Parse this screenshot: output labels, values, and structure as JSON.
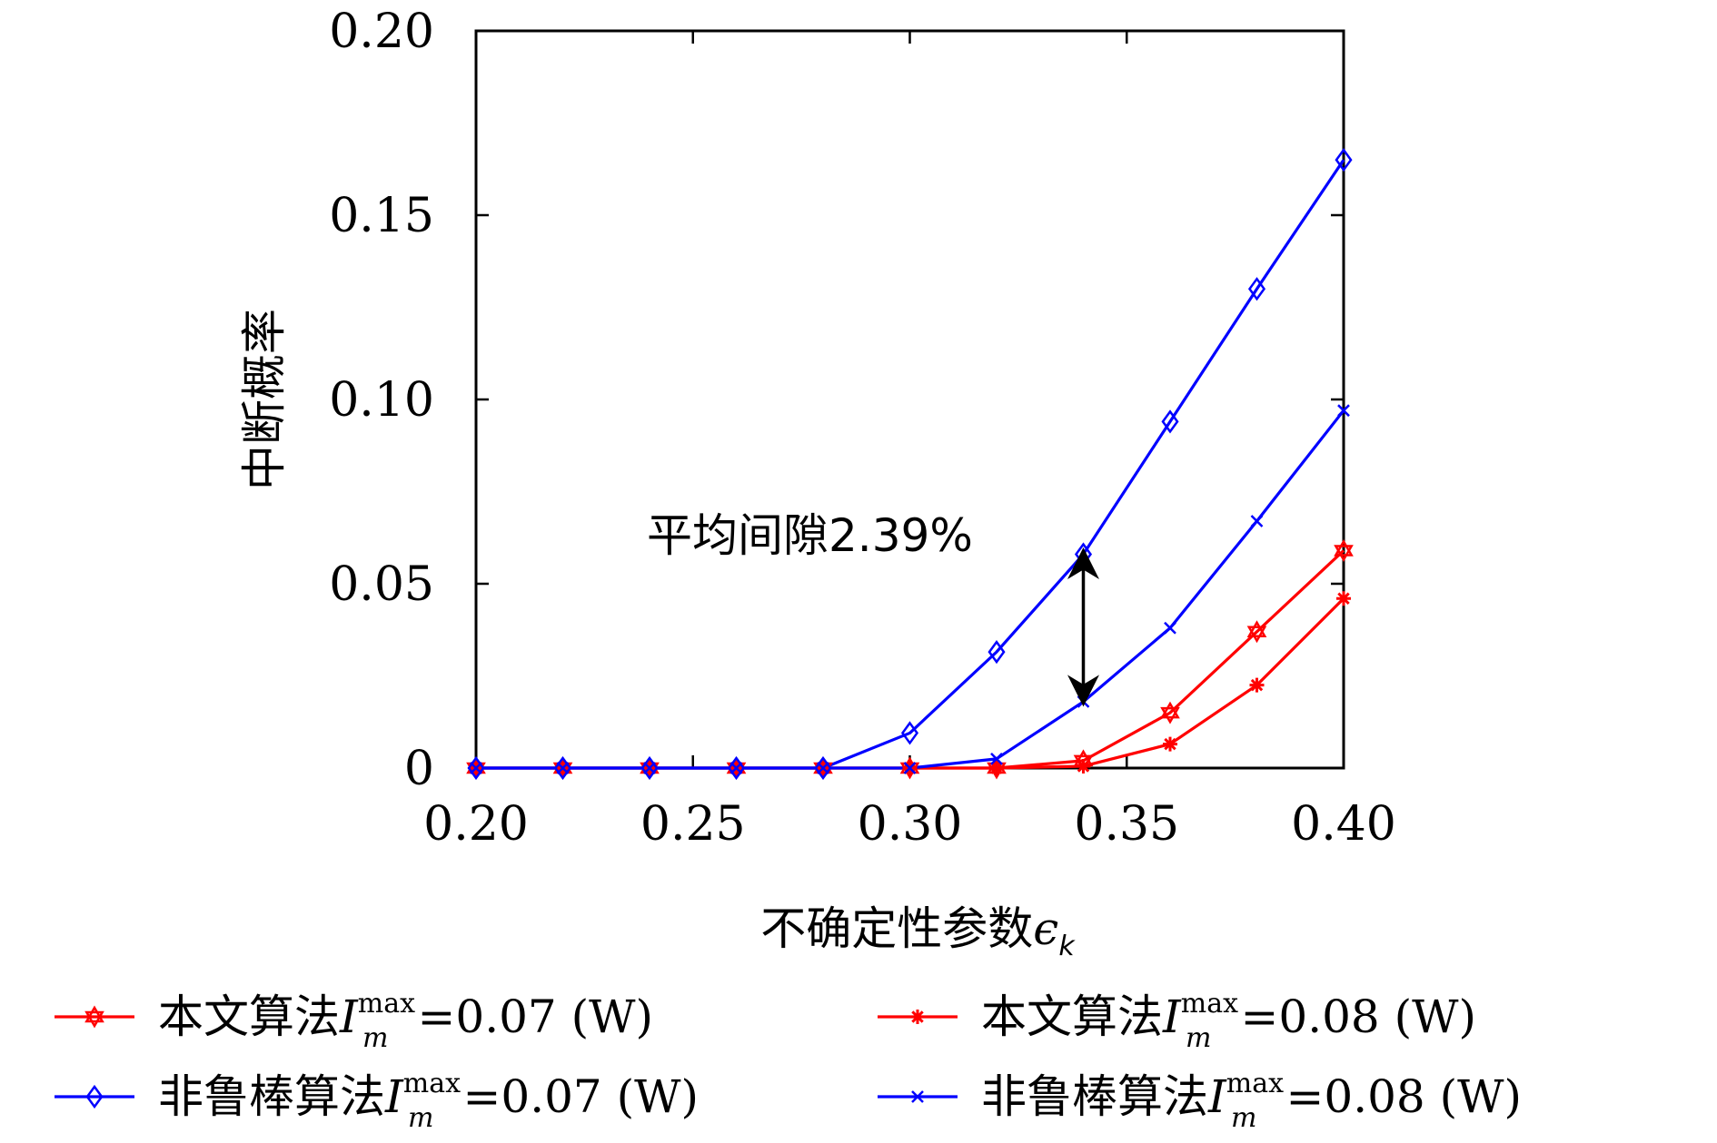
{
  "chart_data": {
    "type": "line",
    "xlabel": "不确定性参数",
    "xlabel_symbol": "ϵ",
    "xlabel_subscript": "k",
    "ylabel": "中断概率",
    "xlim": [
      0.2,
      0.4
    ],
    "ylim": [
      0,
      0.2
    ],
    "xticks": [
      0.2,
      0.25,
      0.3,
      0.35,
      0.4
    ],
    "xtick_labels": [
      "0.20",
      "0.25",
      "0.30",
      "0.35",
      "0.40"
    ],
    "yticks": [
      0,
      0.05,
      0.1,
      0.15,
      0.2
    ],
    "ytick_labels": [
      "0",
      "0.05",
      "0.10",
      "0.15",
      "0.20"
    ],
    "grid": false,
    "legend_position": "bottom",
    "annotation": {
      "text": "平均间隙2.39%",
      "arrow_x": 0.34,
      "arrow_from_y": 0.058,
      "arrow_to_y": 0.019
    },
    "x": [
      0.2,
      0.22,
      0.24,
      0.26,
      0.28,
      0.3,
      0.32,
      0.34,
      0.36,
      0.38,
      0.4
    ],
    "series": [
      {
        "name": "本文算法",
        "name_symbol": "I",
        "name_sup": "max",
        "name_sub": "m",
        "name_suffix": "=0.07 (W)",
        "color": "#ff0000",
        "marker": "hexagram",
        "values": [
          0,
          0,
          0,
          0,
          0,
          0,
          0,
          0.002,
          0.015,
          0.037,
          0.059
        ]
      },
      {
        "name": "本文算法",
        "name_symbol": "I",
        "name_sup": "max",
        "name_sub": "m",
        "name_suffix": "=0.08 (W)",
        "color": "#ff0000",
        "marker": "asterisk",
        "values": [
          0,
          0,
          0,
          0,
          0,
          0,
          0,
          0.0005,
          0.0065,
          0.0225,
          0.046
        ]
      },
      {
        "name": "非鲁棒算法",
        "name_symbol": "I",
        "name_sup": "max",
        "name_sub": "m",
        "name_suffix": "=0.07 (W)",
        "color": "#0000ff",
        "marker": "diamond",
        "values": [
          0,
          0,
          0,
          0,
          0,
          0.0095,
          0.0315,
          0.058,
          0.094,
          0.13,
          0.165
        ]
      },
      {
        "name": "非鲁棒算法",
        "name_symbol": "I",
        "name_sup": "max",
        "name_sub": "m",
        "name_suffix": "=0.08 (W)",
        "color": "#0000ff",
        "marker": "x",
        "values": [
          0,
          0,
          0,
          0,
          0,
          0,
          0.0025,
          0.018,
          0.038,
          0.067,
          0.097
        ]
      }
    ]
  }
}
